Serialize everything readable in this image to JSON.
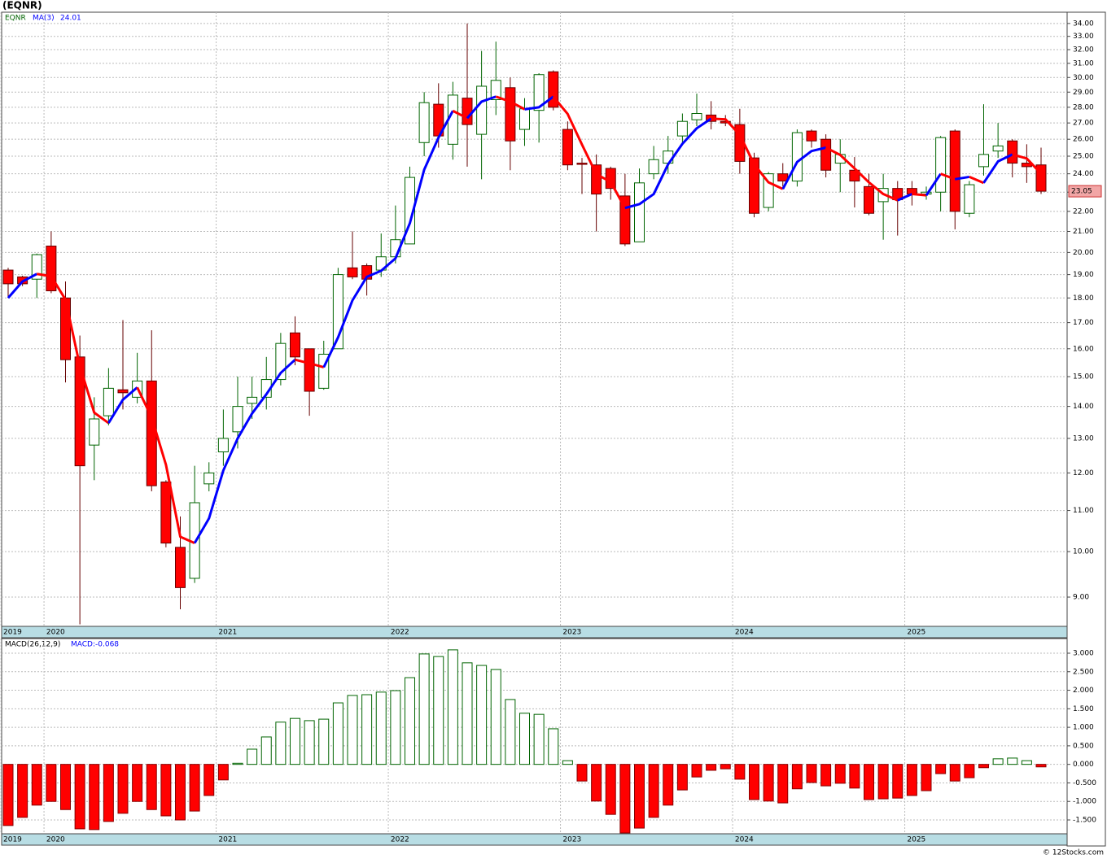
{
  "chart_data": [
    {
      "type": "candlestick",
      "title": "(EQNR)",
      "legend_label": "EQNR",
      "categories": [
        "2019",
        null,
        null,
        "2020",
        null,
        null,
        null,
        null,
        null,
        null,
        null,
        null,
        null,
        null,
        null,
        "2021",
        null,
        null,
        null,
        null,
        null,
        null,
        null,
        null,
        null,
        null,
        null,
        "2022",
        null,
        null,
        null,
        null,
        null,
        null,
        null,
        null,
        null,
        null,
        null,
        "2023",
        null,
        null,
        null,
        null,
        null,
        null,
        null,
        null,
        null,
        null,
        null,
        "2024",
        null,
        null,
        null,
        null,
        null,
        null,
        null,
        null,
        null,
        null,
        null,
        "2025",
        null,
        null,
        null,
        null,
        null,
        null,
        null,
        null,
        null
      ],
      "open": [
        19.2,
        18.9,
        18.8,
        20.3,
        18.0,
        15.7,
        12.8,
        13.7,
        14.55,
        14.3,
        14.85,
        11.75,
        10.1,
        9.4,
        11.7,
        12.6,
        13.2,
        14.1,
        14.3,
        14.9,
        16.6,
        16.0,
        14.6,
        16.0,
        19.3,
        19.4,
        19.2,
        19.8,
        20.4,
        25.8,
        28.2,
        25.7,
        28.6,
        26.3,
        28.5,
        29.3,
        26.6,
        27.8,
        30.4,
        26.6,
        24.6,
        24.5,
        24.3,
        22.8,
        20.5,
        24.0,
        24.6,
        26.2,
        27.2,
        27.5,
        27.1,
        26.9,
        24.9,
        22.2,
        24.0,
        23.6,
        26.5,
        26.0,
        24.6,
        24.2,
        23.3,
        22.5,
        23.2,
        23.2,
        22.9,
        23.0,
        26.5,
        21.9,
        24.4,
        25.3,
        25.9,
        24.6,
        24.5
      ],
      "high": [
        19.3,
        18.95,
        19.95,
        21.0,
        18.7,
        16.5,
        14.3,
        15.3,
        17.1,
        15.85,
        16.7,
        11.8,
        10.85,
        12.2,
        12.3,
        13.9,
        15.0,
        15.0,
        15.7,
        16.6,
        17.25,
        16.0,
        16.3,
        19.3,
        21.0,
        19.5,
        20.9,
        22.3,
        24.4,
        29.0,
        29.6,
        29.7,
        34.0,
        31.9,
        32.6,
        30.0,
        28.6,
        30.3,
        30.5,
        27.1,
        24.9,
        25.1,
        24.4,
        24.0,
        24.3,
        25.6,
        26.2,
        27.6,
        28.9,
        28.4,
        27.5,
        27.9,
        25.2,
        24.1,
        24.6,
        26.6,
        26.6,
        26.3,
        26.0,
        24.95,
        24.0,
        24.0,
        23.6,
        23.6,
        23.3,
        26.2,
        26.6,
        23.6,
        28.2,
        27.0,
        26.0,
        25.7,
        25.5
      ],
      "low": [
        18.0,
        18.5,
        18.0,
        18.2,
        14.8,
        8.45,
        11.8,
        13.4,
        13.9,
        14.1,
        11.5,
        10.1,
        8.75,
        9.3,
        11.5,
        12.2,
        12.7,
        13.6,
        13.9,
        14.7,
        15.4,
        13.7,
        14.55,
        16.0,
        18.8,
        18.1,
        18.9,
        19.5,
        20.4,
        25.0,
        25.5,
        24.8,
        24.4,
        23.7,
        27.5,
        24.2,
        25.6,
        25.8,
        27.8,
        24.2,
        22.9,
        21.0,
        22.6,
        20.3,
        20.5,
        23.7,
        24.0,
        25.7,
        26.8,
        26.6,
        26.8,
        24.0,
        21.7,
        22.0,
        23.3,
        23.3,
        25.5,
        23.8,
        23.0,
        22.2,
        21.8,
        20.6,
        20.8,
        22.3,
        22.6,
        22.0,
        21.1,
        21.7,
        23.9,
        24.9,
        23.8,
        23.5,
        22.9
      ],
      "close": [
        18.6,
        18.6,
        19.9,
        18.3,
        15.6,
        12.2,
        13.6,
        14.6,
        14.45,
        14.85,
        11.65,
        10.2,
        9.2,
        11.2,
        12.0,
        13.0,
        14.0,
        14.3,
        14.9,
        16.2,
        15.7,
        14.5,
        15.8,
        19.0,
        18.9,
        18.8,
        19.8,
        20.6,
        23.8,
        28.3,
        26.2,
        28.8,
        26.9,
        29.4,
        29.8,
        25.9,
        27.9,
        30.2,
        28.0,
        24.5,
        24.55,
        22.9,
        23.2,
        20.4,
        23.5,
        24.8,
        25.3,
        27.1,
        27.6,
        27.1,
        27.0,
        24.7,
        21.9,
        24.0,
        23.6,
        26.4,
        25.9,
        24.2,
        25.1,
        23.6,
        21.9,
        23.2,
        22.6,
        22.9,
        23.0,
        26.1,
        22.0,
        23.4,
        25.1,
        25.6,
        24.6,
        24.4,
        23.05
      ],
      "up_color": "#006400",
      "down_color": "#ff0000",
      "ma": {
        "name": "MA(3)",
        "value_label": "24.01",
        "up_color": "#0000ff",
        "down_color": "#ff0000",
        "values": [
          18.0,
          18.7,
          19.03,
          18.93,
          17.93,
          15.37,
          13.8,
          13.47,
          14.22,
          14.63,
          13.65,
          12.23,
          10.35,
          10.2,
          10.8,
          12.07,
          13.0,
          13.77,
          14.4,
          15.13,
          15.6,
          15.47,
          15.33,
          16.43,
          17.9,
          18.9,
          19.17,
          19.73,
          21.4,
          24.23,
          26.1,
          27.77,
          27.3,
          28.37,
          28.7,
          28.37,
          27.87,
          28.0,
          28.7,
          27.57,
          25.68,
          23.98,
          23.55,
          22.17,
          22.37,
          22.9,
          24.53,
          25.73,
          26.67,
          27.27,
          27.23,
          26.27,
          24.53,
          23.53,
          23.17,
          24.67,
          25.3,
          25.5,
          25.07,
          24.3,
          23.53,
          22.9,
          22.57,
          22.9,
          22.83,
          24.0,
          23.7,
          23.83,
          23.5,
          24.7,
          25.1,
          24.87,
          24.01
        ]
      },
      "last_price_label": "23.05",
      "log_scale": true,
      "grid": true,
      "ylim": [
        8.41,
        34.9
      ],
      "yticks": [
        {
          "value": 9,
          "label": "9.00"
        },
        {
          "value": 10,
          "label": "10.00"
        },
        {
          "value": 11,
          "label": "11.00"
        },
        {
          "value": 12,
          "label": "12.00"
        },
        {
          "value": 13,
          "label": "13.00"
        },
        {
          "value": 14,
          "label": "14.00"
        },
        {
          "value": 15,
          "label": "15.00"
        },
        {
          "value": 16,
          "label": "16.00"
        },
        {
          "value": 17,
          "label": "17.00"
        },
        {
          "value": 18,
          "label": "18.00"
        },
        {
          "value": 19,
          "label": "19.00"
        },
        {
          "value": 20,
          "label": "20.00"
        },
        {
          "value": 21,
          "label": "21.00"
        },
        {
          "value": 22,
          "label": "22.00"
        },
        {
          "value": 23,
          "label": "23.00"
        },
        {
          "value": 24,
          "label": "24.00"
        },
        {
          "value": 25,
          "label": "25.00"
        },
        {
          "value": 26,
          "label": "26.00"
        },
        {
          "value": 27,
          "label": "27.00"
        },
        {
          "value": 28,
          "label": "28.00"
        },
        {
          "value": 29,
          "label": "29.00"
        },
        {
          "value": 30,
          "label": "30.00"
        },
        {
          "value": 31,
          "label": "31.00"
        },
        {
          "value": 32,
          "label": "32.00"
        },
        {
          "value": 33,
          "label": "33.00"
        },
        {
          "value": 34,
          "label": "34.00"
        }
      ]
    },
    {
      "type": "bar",
      "title": "MACD(26,12,9)",
      "legend_label": "MACD:-0.068",
      "categories": [
        "2019",
        null,
        null,
        "2020",
        null,
        null,
        null,
        null,
        null,
        null,
        null,
        null,
        null,
        null,
        null,
        "2021",
        null,
        null,
        null,
        null,
        null,
        null,
        null,
        null,
        null,
        null,
        null,
        "2022",
        null,
        null,
        null,
        null,
        null,
        null,
        null,
        null,
        null,
        null,
        null,
        "2023",
        null,
        null,
        null,
        null,
        null,
        null,
        null,
        null,
        null,
        null,
        null,
        "2024",
        null,
        null,
        null,
        null,
        null,
        null,
        null,
        null,
        null,
        null,
        null,
        "2025",
        null,
        null,
        null,
        null,
        null,
        null,
        null,
        null,
        null
      ],
      "values": [
        -1.65,
        -1.43,
        -1.1,
        -1.0,
        -1.22,
        -1.74,
        -1.76,
        -1.54,
        -1.32,
        -1.0,
        -1.22,
        -1.39,
        -1.5,
        -1.26,
        -0.84,
        -0.42,
        0.03,
        0.41,
        0.74,
        1.14,
        1.24,
        1.18,
        1.22,
        1.66,
        1.86,
        1.88,
        1.95,
        1.99,
        2.34,
        2.98,
        2.91,
        3.09,
        2.74,
        2.67,
        2.56,
        1.75,
        1.38,
        1.35,
        0.96,
        0.1,
        -0.45,
        -0.99,
        -1.35,
        -1.85,
        -1.72,
        -1.43,
        -1.1,
        -0.69,
        -0.34,
        -0.16,
        -0.12,
        -0.4,
        -0.95,
        -0.99,
        -1.04,
        -0.66,
        -0.49,
        -0.58,
        -0.51,
        -0.64,
        -0.95,
        -0.93,
        -0.91,
        -0.84,
        -0.71,
        -0.25,
        -0.45,
        -0.36,
        -0.09,
        0.15,
        0.17,
        0.1,
        -0.068
      ],
      "positive_color": "#006400",
      "negative_color": "#ff0000",
      "grid": true,
      "ylim": [
        -1.873,
        3.395
      ],
      "yticks": [
        {
          "value": -1.5,
          "label": "-1.500"
        },
        {
          "value": -1,
          "label": "-1.000"
        },
        {
          "value": -0.5,
          "label": "-0.500"
        },
        {
          "value": 0,
          "label": "0.000"
        },
        {
          "value": 0.5,
          "label": "0.500"
        },
        {
          "value": 1,
          "label": "1.000"
        },
        {
          "value": 1.5,
          "label": "1.500"
        },
        {
          "value": 2,
          "label": "2.000"
        },
        {
          "value": 2.5,
          "label": "2.500"
        },
        {
          "value": 3,
          "label": "3.000"
        }
      ]
    }
  ],
  "footer": "© 12Stocks.com"
}
